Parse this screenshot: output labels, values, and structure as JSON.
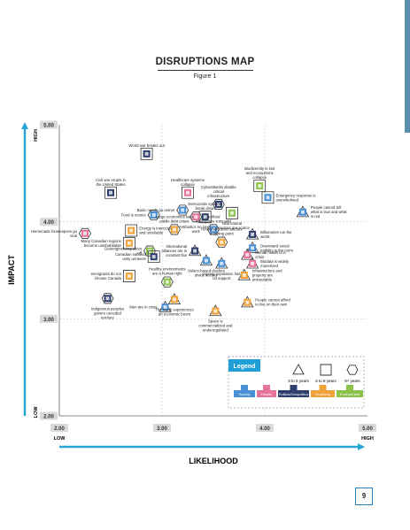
{
  "page": {
    "title": "DISRUPTIONS MAP",
    "subtitle": "Figure 1",
    "page_number": "9"
  },
  "colors": {
    "Society": "#4a8ed6",
    "Health": "#e8739a",
    "Politics/Geopolitics": "#2e3f6e",
    "Economy": "#f0a23a",
    "Environment": "#8bc34a",
    "axis_arrow": "#2aa6d6",
    "gridline": "#cfd8df",
    "tick_box": "#d9d9d9"
  },
  "legend": {
    "title": "Legend",
    "shapes": [
      {
        "shape": "triangle",
        "label": "3 to 5 years"
      },
      {
        "shape": "square",
        "label": "6 to 8 years"
      },
      {
        "shape": "hexagon",
        "label": "9+ years"
      }
    ],
    "categories": [
      "Society",
      "Health",
      "Politics/Geopolitics",
      "Economy",
      "Environment"
    ]
  },
  "chart_data": {
    "type": "scatter",
    "title": "DISRUPTIONS MAP",
    "xlabel": "LIKELIHOOD",
    "ylabel": "IMPACT",
    "xlim": [
      2.0,
      5.0
    ],
    "ylim": [
      2.0,
      5.0
    ],
    "x_ticks": [
      "2.00",
      "3.00",
      "4.00",
      "5.00"
    ],
    "y_ticks": [
      "5.00",
      "4.00",
      "3.00",
      "2.00"
    ],
    "x_end_labels": [
      "LOW",
      "HIGH"
    ],
    "y_end_labels": [
      "HIGH",
      "LOW"
    ],
    "grid": true,
    "points": [
      {
        "label": "World war breaks out",
        "x": 2.85,
        "y": 4.7,
        "category": "Politics/Geopolitics",
        "shape": "square",
        "label_pos": "above"
      },
      {
        "label": "Civil war erupts in the United States",
        "x": 2.5,
        "y": 4.3,
        "category": "Politics/Geopolitics",
        "shape": "square",
        "label_pos": "above"
      },
      {
        "label": "Healthcare systems collapse",
        "x": 3.25,
        "y": 4.3,
        "category": "Health",
        "shape": "square",
        "label_pos": "above"
      },
      {
        "label": "Biodiversity is lost and ecosystems collapse",
        "x": 3.95,
        "y": 4.37,
        "category": "Environment",
        "shape": "square",
        "label_pos": "above"
      },
      {
        "label": "Cyberattacks disable critical infrastructure",
        "x": 3.55,
        "y": 4.18,
        "category": "Politics/Geopolitics",
        "shape": "hexagon",
        "label_pos": "above"
      },
      {
        "label": "Basic needs go unmet",
        "x": 3.2,
        "y": 4.12,
        "category": "Society",
        "shape": "hexagon",
        "label_pos": "left"
      },
      {
        "label": "Democratic systems break down",
        "x": 3.42,
        "y": 4.05,
        "category": "Politics/Geopolitics",
        "shape": "square",
        "label_pos": "above"
      },
      {
        "label": "Emergency response is overwhelmed",
        "x": 4.03,
        "y": 4.25,
        "category": "Society",
        "shape": "square",
        "label_pos": "right"
      },
      {
        "label": "Food is scarce",
        "x": 2.92,
        "y": 4.07,
        "category": "Society",
        "shape": "hexagon",
        "label_pos": "left"
      },
      {
        "label": "Vital natural resources are scarce",
        "x": 3.68,
        "y": 4.09,
        "category": "Environment",
        "shape": "square",
        "label_pos": "below"
      },
      {
        "label": "People cannot tell what is true and what is not",
        "x": 4.37,
        "y": 4.1,
        "category": "Society",
        "shape": "triangle",
        "label_pos": "right"
      },
      {
        "label": "Antibiotics no longer work",
        "x": 3.33,
        "y": 4.05,
        "category": "Health",
        "shape": "hexagon",
        "label_pos": "below"
      },
      {
        "label": "Homemade bioweapons go viral",
        "x": 2.25,
        "y": 3.88,
        "category": "Health",
        "shape": "hexagon",
        "label_pos": "left"
      },
      {
        "label": "Energy is inaccessible and unreliable",
        "x": 2.7,
        "y": 3.91,
        "category": "Economy",
        "shape": "square",
        "label_pos": "right"
      },
      {
        "label": "Large economies face public debt crises",
        "x": 3.12,
        "y": 3.92,
        "category": "Economy",
        "shape": "hexagon",
        "label_pos": "above"
      },
      {
        "label": "Artificial intelligence runs wild",
        "x": 3.5,
        "y": 3.92,
        "category": "Society",
        "shape": "hexagon",
        "label_pos": "above"
      },
      {
        "label": "Billionaires run the world",
        "x": 3.88,
        "y": 3.87,
        "category": "Politics/Geopolitics",
        "shape": "triangle",
        "label_pos": "right"
      },
      {
        "label": "Many Canadian regions become uninhabitable",
        "x": 2.68,
        "y": 3.78,
        "category": "Economy",
        "shape": "square",
        "label_pos": "left"
      },
      {
        "label": "Household debt reaches a tipping point",
        "x": 3.58,
        "y": 3.79,
        "category": "Economy",
        "shape": "hexagon",
        "label_pos": "above"
      },
      {
        "label": "International alliances are in constant flux",
        "x": 3.32,
        "y": 3.7,
        "category": "Politics/Geopolitics",
        "shape": "triangle",
        "label_pos": "left"
      },
      {
        "label": "Downward social mobility is the norm",
        "x": 3.88,
        "y": 3.73,
        "category": "Society",
        "shape": "triangle",
        "label_pos": "right"
      },
      {
        "label": "Geoengineering takes off",
        "x": 2.88,
        "y": 3.7,
        "category": "Environment",
        "shape": "hexagon",
        "label_pos": "left"
      },
      {
        "label": "Mental health is in crisis",
        "x": 3.83,
        "y": 3.66,
        "category": "Health",
        "shape": "triangle",
        "label_pos": "right"
      },
      {
        "label": "Canadian national unity unravels",
        "x": 2.92,
        "y": 3.64,
        "category": "Politics/Geopolitics",
        "shape": "square",
        "label_pos": "left"
      },
      {
        "label": "Values-based clashes divide society",
        "x": 3.43,
        "y": 3.6,
        "category": "Society",
        "shape": "triangle",
        "label_pos": "below"
      },
      {
        "label": "Biodata is widely monetized",
        "x": 3.88,
        "y": 3.57,
        "category": "Health",
        "shape": "triangle",
        "label_pos": "right"
      },
      {
        "label": "Ageing population has no support",
        "x": 3.58,
        "y": 3.57,
        "category": "Society",
        "shape": "triangle",
        "label_pos": "below"
      },
      {
        "label": "Infrastructure and property are uninsurable",
        "x": 3.8,
        "y": 3.45,
        "category": "Economy",
        "shape": "triangle",
        "label_pos": "right"
      },
      {
        "label": "Immigrants do not choose Canada",
        "x": 2.68,
        "y": 3.44,
        "category": "Economy",
        "shape": "square",
        "label_pos": "left"
      },
      {
        "label": "Healthy environments are a human right",
        "x": 3.05,
        "y": 3.38,
        "category": "Environment",
        "shape": "hexagon",
        "label_pos": "above"
      },
      {
        "label": "Indigenous peoples govern unceded territory",
        "x": 2.47,
        "y": 3.21,
        "category": "Politics/Geopolitics",
        "shape": "hexagon",
        "label_pos": "below"
      },
      {
        "label": "Men are in crisis",
        "x": 3.03,
        "y": 3.12,
        "category": "Society",
        "shape": "triangle",
        "label_pos": "left"
      },
      {
        "label": "The North experiences an economic boom",
        "x": 3.12,
        "y": 3.2,
        "category": "Economy",
        "shape": "triangle",
        "label_pos": "below"
      },
      {
        "label": "People cannot afford to live on their own",
        "x": 3.83,
        "y": 3.17,
        "category": "Economy",
        "shape": "triangle",
        "label_pos": "right"
      },
      {
        "label": "Space is commercialized and underregulated",
        "x": 3.52,
        "y": 3.08,
        "category": "Economy",
        "shape": "triangle",
        "label_pos": "below"
      }
    ]
  }
}
